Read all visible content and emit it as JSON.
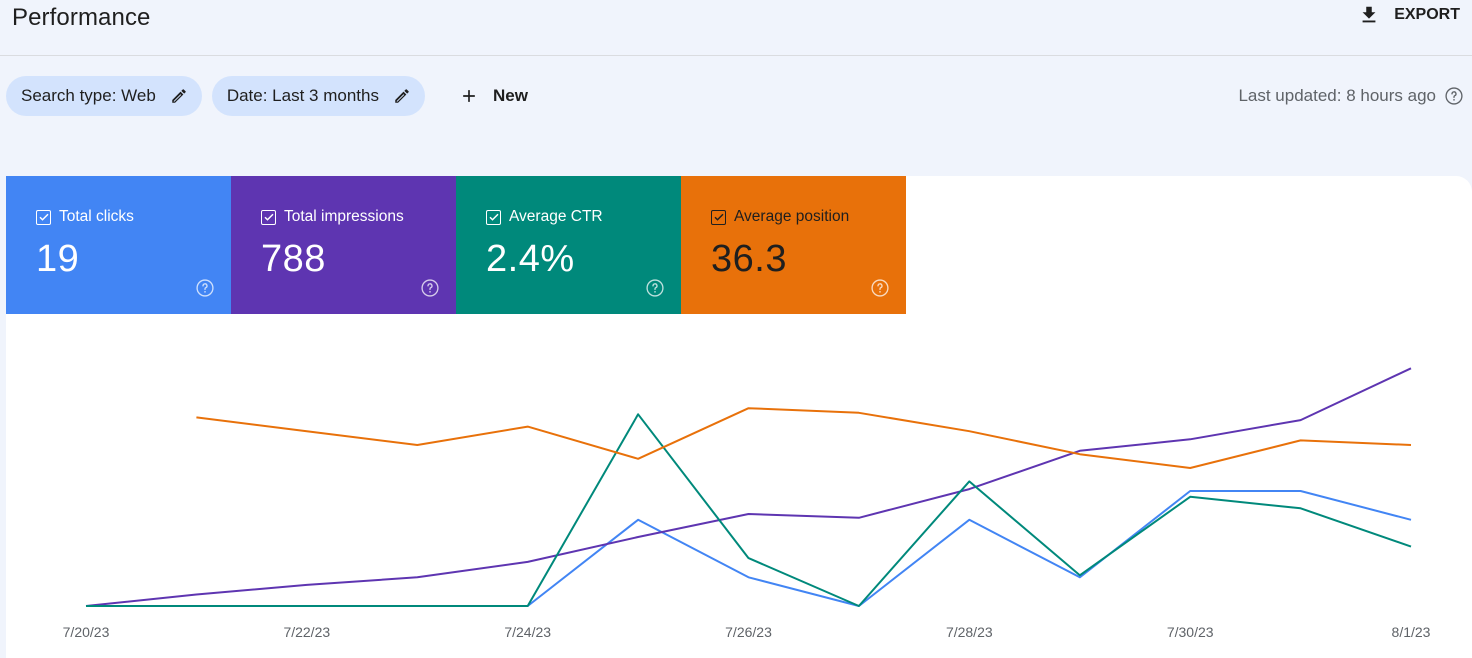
{
  "header": {
    "title": "Performance",
    "export_label": "EXPORT"
  },
  "filters": {
    "search_type": "Search type: Web",
    "date": "Date: Last 3 months",
    "new_label": "New"
  },
  "status": {
    "last_updated": "Last updated: 8 hours ago"
  },
  "metrics": [
    {
      "label": "Total clicks",
      "value": "19",
      "color": "#4285f4",
      "checked": true
    },
    {
      "label": "Total impressions",
      "value": "788",
      "color": "#5e35b1",
      "checked": true
    },
    {
      "label": "Average CTR",
      "value": "2.4%",
      "color": "#00897b",
      "checked": true
    },
    {
      "label": "Average position",
      "value": "36.3",
      "color": "#e8710a",
      "checked": true
    }
  ],
  "chart_data": {
    "type": "line",
    "x": [
      "7/20/23",
      "7/21/23",
      "7/22/23",
      "7/23/23",
      "7/24/23",
      "7/25/23",
      "7/26/23",
      "7/27/23",
      "7/28/23",
      "7/29/23",
      "7/30/23",
      "7/31/23",
      "8/1/23"
    ],
    "x_tick_labels": [
      "7/20/23",
      "7/22/23",
      "7/24/23",
      "7/26/23",
      "7/28/23",
      "7/30/23",
      "8/1/23"
    ],
    "grid": false,
    "legend": "none",
    "series": [
      {
        "metric": "clicks",
        "color": "#4285f4",
        "ylim": [
          0,
          8
        ],
        "values": [
          0,
          0,
          0,
          0,
          0,
          3,
          1,
          0,
          3,
          1,
          4,
          4,
          3
        ]
      },
      {
        "metric": "impressions",
        "color": "#5e35b1",
        "ylim": [
          0,
          120
        ],
        "values": [
          0,
          6,
          11,
          15,
          23,
          36,
          48,
          46,
          61,
          81,
          87,
          97,
          124
        ]
      },
      {
        "metric": "ctr",
        "color": "#00897b",
        "ylim": [
          0,
          12
        ],
        "values": [
          0,
          0,
          0,
          0,
          0,
          10,
          2.5,
          0,
          6.5,
          1.6,
          5.7,
          5.1,
          3.1
        ]
      },
      {
        "metric": "position",
        "color": "#e8710a",
        "ylim": [
          0,
          50
        ],
        "values": [
          null,
          41,
          38,
          35,
          39,
          32,
          43,
          42,
          38,
          33,
          30,
          36,
          35
        ]
      }
    ]
  }
}
